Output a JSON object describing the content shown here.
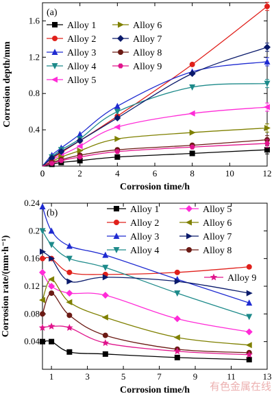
{
  "chart_data": [
    {
      "type": "line",
      "panel_label": "(a)",
      "xlabel": "Corrosion time/h",
      "ylabel": "Corrosion depth/mm",
      "xlim": [
        0,
        12
      ],
      "ylim": [
        0,
        1.8
      ],
      "xticks": [
        0,
        2,
        4,
        6,
        8,
        10,
        12
      ],
      "yticks": [
        0.4,
        0.8,
        1.2,
        1.6
      ],
      "legend_placement": "top-left",
      "x": [
        0.5,
        1,
        2,
        4,
        8,
        12
      ],
      "series": [
        {
          "name": "Alloy 1",
          "color": "#000000",
          "marker": "square",
          "values": [
            0.02,
            0.04,
            0.06,
            0.1,
            0.14,
            0.18
          ]
        },
        {
          "name": "Alloy 2",
          "color": "#e0201b",
          "marker": "circle",
          "values": [
            0.08,
            0.15,
            0.28,
            0.55,
            1.12,
            1.76
          ]
        },
        {
          "name": "Alloy 3",
          "color": "#1f2bd1",
          "marker": "triangle-up",
          "values": [
            0.12,
            0.2,
            0.35,
            0.66,
            1.04,
            1.15
          ]
        },
        {
          "name": "Alloy 4",
          "color": "#1d8a8a",
          "marker": "triangle-down",
          "values": [
            0.1,
            0.18,
            0.3,
            0.6,
            0.87,
            0.91
          ]
        },
        {
          "name": "Alloy 5",
          "color": "#ff2bd7",
          "marker": "triangle-left",
          "values": [
            0.07,
            0.12,
            0.22,
            0.43,
            0.58,
            0.65
          ]
        },
        {
          "name": "Alloy 6",
          "color": "#7f8000",
          "marker": "triangle-right",
          "values": [
            0.05,
            0.1,
            0.17,
            0.3,
            0.37,
            0.42
          ]
        },
        {
          "name": "Alloy 7",
          "color": "#0a1a6b",
          "marker": "diamond",
          "values": [
            0.09,
            0.16,
            0.28,
            0.53,
            1.02,
            1.31
          ]
        },
        {
          "name": "Alloy 8",
          "color": "#6b1a14",
          "marker": "circle",
          "values": [
            0.04,
            0.07,
            0.12,
            0.18,
            0.23,
            0.29
          ]
        },
        {
          "name": "Alloy 9",
          "color": "#e0148c",
          "marker": "hexagon",
          "values": [
            0.03,
            0.06,
            0.1,
            0.16,
            0.21,
            0.25
          ]
        }
      ]
    },
    {
      "type": "line",
      "panel_label": "(b)",
      "xlabel": "Corrosion time/h",
      "ylabel": "Corrosion rate/(mm·h⁻¹)",
      "xlim": [
        0.5,
        13
      ],
      "ylim": [
        0,
        0.24
      ],
      "xticks": [
        1,
        3,
        5,
        7,
        9,
        11,
        13
      ],
      "yticks": [
        0.04,
        0.08,
        0.12,
        0.16,
        0.2,
        0.24
      ],
      "legend_placement": "top-right",
      "x": [
        0.5,
        1,
        2,
        4,
        8,
        12
      ],
      "series": [
        {
          "name": "Alloy 1",
          "color": "#000000",
          "marker": "square",
          "values": [
            0.04,
            0.04,
            0.025,
            0.022,
            0.017,
            0.014
          ]
        },
        {
          "name": "Alloy 2",
          "color": "#e0201b",
          "marker": "circle",
          "values": [
            0.16,
            0.16,
            0.14,
            0.137,
            0.14,
            0.148
          ]
        },
        {
          "name": "Alloy 3",
          "color": "#1f2bd1",
          "marker": "triangle-up",
          "values": [
            0.235,
            0.2,
            0.178,
            0.165,
            0.13,
            0.096
          ]
        },
        {
          "name": "Alloy 4",
          "color": "#1d8a8a",
          "marker": "triangle-down",
          "values": [
            0.2,
            0.18,
            0.16,
            0.147,
            0.11,
            0.076
          ]
        },
        {
          "name": "Alloy 5",
          "color": "#ff2bd7",
          "marker": "diamond",
          "values": [
            0.14,
            0.12,
            0.11,
            0.107,
            0.073,
            0.054
          ]
        },
        {
          "name": "Alloy 6",
          "color": "#7f8000",
          "marker": "triangle-left",
          "values": [
            0.1,
            0.13,
            0.097,
            0.075,
            0.046,
            0.035
          ]
        },
        {
          "name": "Alloy 7",
          "color": "#0a1a6b",
          "marker": "triangle-right",
          "values": [
            0.17,
            0.16,
            0.127,
            0.133,
            0.127,
            0.11
          ]
        },
        {
          "name": "Alloy 8",
          "color": "#6b1a14",
          "marker": "circle",
          "values": [
            0.08,
            0.11,
            0.078,
            0.049,
            0.029,
            0.024
          ]
        },
        {
          "name": "Alloy 9",
          "color": "#e0148c",
          "marker": "star",
          "values": [
            0.06,
            0.062,
            0.06,
            0.038,
            0.026,
            0.021
          ]
        }
      ]
    }
  ],
  "watermark": "有色金属在线"
}
